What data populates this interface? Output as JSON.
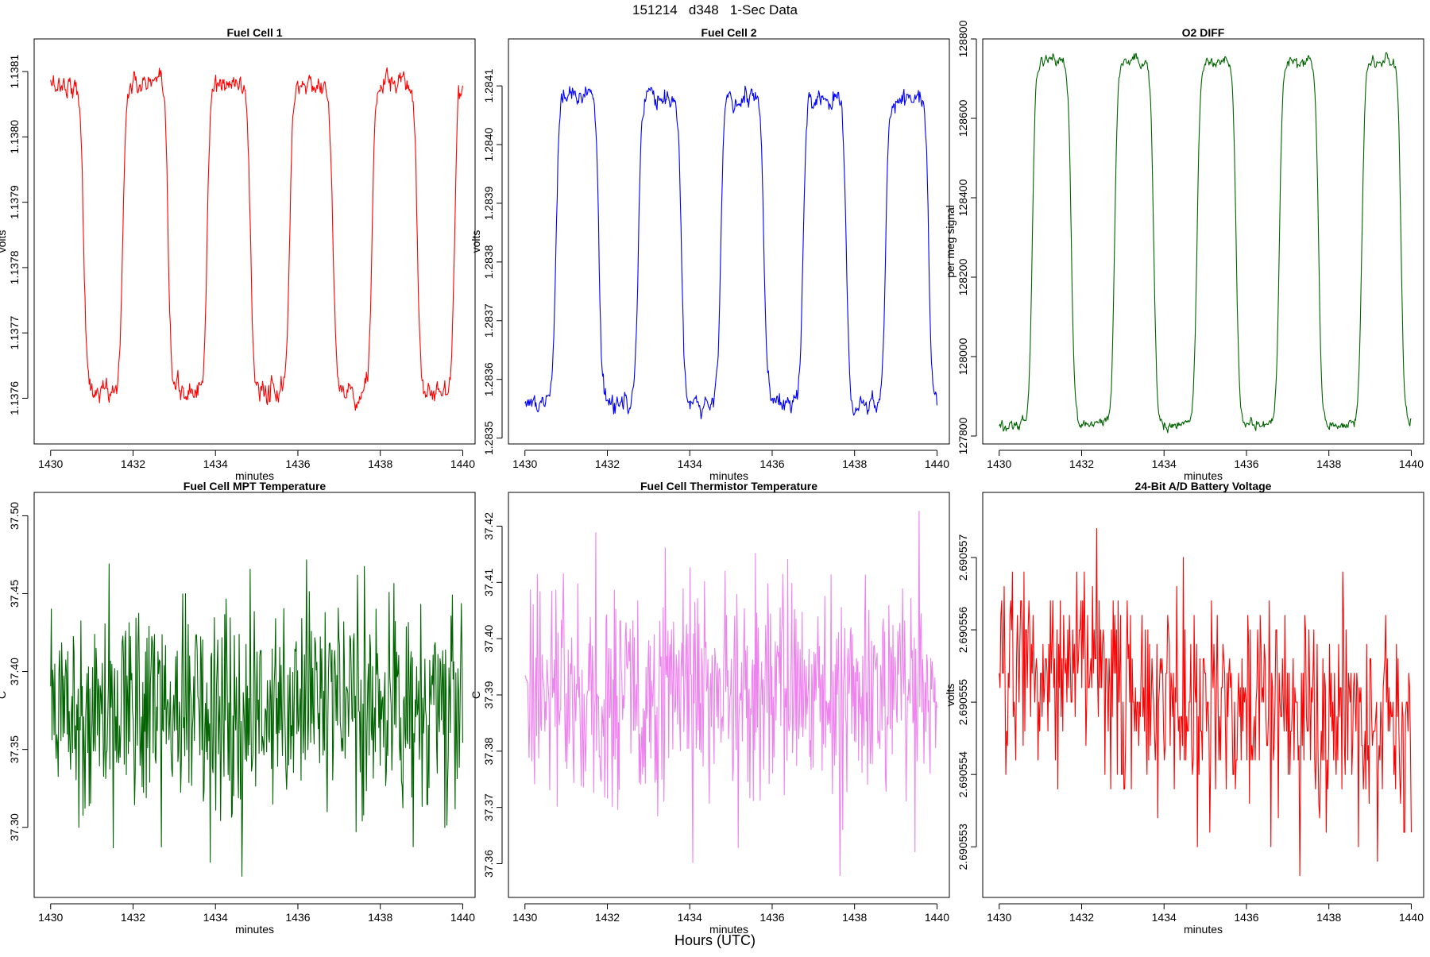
{
  "figure": {
    "suptitle": "151214   d348   1-Sec Data",
    "common_xlabel": "Hours (UTC)"
  },
  "chart_data": [
    {
      "type": "line",
      "title": "Fuel Cell 1",
      "xlabel": "minutes",
      "ylabel": "volts",
      "color": "#ff0000",
      "xlim": [
        1429.6,
        1440.3
      ],
      "ylim": [
        1.13753,
        1.13815
      ],
      "xticks": [
        1430,
        1432,
        1434,
        1436,
        1438,
        1440
      ],
      "xtick_labels": [
        "1430",
        "1432",
        "1434",
        "1436",
        "1438",
        "1440"
      ],
      "yticks": [
        1.1376,
        1.1377,
        1.1378,
        1.1379,
        1.138,
        1.1381
      ],
      "ytick_labels": [
        "1.1376",
        "1.1377",
        "1.1378",
        "1.1379",
        "1.1380",
        "1.1381"
      ],
      "profile": "square",
      "start_state": "high",
      "high": 1.13808,
      "low": 1.13761,
      "noise": 1.2e-05,
      "transitions": [
        1430.8,
        1431.75,
        1432.85,
        1433.8,
        1434.85,
        1435.8,
        1436.85,
        1437.8,
        1438.9,
        1439.8
      ],
      "x_range": [
        1430,
        1440
      ],
      "points": 600,
      "series_name": "Fuel Cell 1"
    },
    {
      "type": "line",
      "title": "Fuel Cell 2",
      "xlabel": "minutes",
      "ylabel": "volts",
      "color": "#0000ff",
      "xlim": [
        1429.6,
        1440.3
      ],
      "ylim": [
        1.28349,
        1.28418
      ],
      "xticks": [
        1430,
        1432,
        1434,
        1436,
        1438,
        1440
      ],
      "xtick_labels": [
        "1430",
        "1432",
        "1434",
        "1436",
        "1438",
        "1440"
      ],
      "yticks": [
        1.2835,
        1.2836,
        1.2837,
        1.2838,
        1.2839,
        1.284,
        1.2841
      ],
      "ytick_labels": [
        "1.2835",
        "1.2836",
        "1.2837",
        "1.2838",
        "1.2839",
        "1.2840",
        "1.2841"
      ],
      "profile": "square",
      "start_state": "low",
      "high": 1.28408,
      "low": 1.28356,
      "noise": 1.2e-05,
      "transitions": [
        1430.75,
        1431.8,
        1432.75,
        1433.8,
        1434.75,
        1435.8,
        1436.75,
        1437.8,
        1438.75,
        1439.8
      ],
      "x_range": [
        1430,
        1440
      ],
      "points": 600,
      "series_name": "Fuel Cell 2"
    },
    {
      "type": "line",
      "title": "O2 DIFF",
      "xlabel": "minutes",
      "ylabel": "per meg signal",
      "color": "#006400",
      "xlim": [
        1429.6,
        1440.3
      ],
      "ylim": [
        127780,
        128800
      ],
      "xticks": [
        1430,
        1432,
        1434,
        1436,
        1438,
        1440
      ],
      "xtick_labels": [
        "1430",
        "1432",
        "1434",
        "1436",
        "1438",
        "1440"
      ],
      "yticks": [
        127800,
        128000,
        128200,
        128400,
        128600,
        128800
      ],
      "ytick_labels": [
        "127800",
        "128000",
        "128200",
        "128400",
        "128600",
        "128800"
      ],
      "profile": "square",
      "start_state": "low",
      "high": 128745,
      "low": 127830,
      "noise": 10,
      "transitions": [
        1430.8,
        1431.75,
        1432.8,
        1433.75,
        1434.8,
        1435.75,
        1436.8,
        1437.75,
        1438.8,
        1439.75
      ],
      "x_range": [
        1430,
        1440
      ],
      "points": 600,
      "series_name": "O2 DIFF"
    },
    {
      "type": "line",
      "title": "Fuel Cell MPT Temperature",
      "xlabel": "minutes",
      "ylabel": "C",
      "color": "#006400",
      "xlim": [
        1429.6,
        1440.3
      ],
      "ylim": [
        37.255,
        37.515
      ],
      "xticks": [
        1430,
        1432,
        1434,
        1436,
        1438,
        1440
      ],
      "xtick_labels": [
        "1430",
        "1432",
        "1434",
        "1436",
        "1438",
        "1440"
      ],
      "yticks": [
        37.3,
        37.35,
        37.4,
        37.45,
        37.5
      ],
      "ytick_labels": [
        "37.30",
        "37.35",
        "37.40",
        "37.45",
        "37.50"
      ],
      "profile": "noise",
      "mean": 37.38,
      "noise": 0.035,
      "clip": [
        37.265,
        37.505
      ],
      "x_range": [
        1430,
        1440
      ],
      "points": 600,
      "series_name": "MPT Temperature"
    },
    {
      "type": "line",
      "title": "Fuel Cell Thermistor Temperature",
      "xlabel": "minutes",
      "ylabel": "C",
      "color": "#ee82ee",
      "xlim": [
        1429.6,
        1440.3
      ],
      "ylim": [
        37.354,
        37.426
      ],
      "xticks": [
        1430,
        1432,
        1434,
        1436,
        1438,
        1440
      ],
      "xtick_labels": [
        "1430",
        "1432",
        "1434",
        "1436",
        "1438",
        "1440"
      ],
      "yticks": [
        37.36,
        37.37,
        37.38,
        37.39,
        37.4,
        37.41,
        37.42
      ],
      "ytick_labels": [
        "37.36",
        "37.37",
        "37.38",
        "37.39",
        "37.40",
        "37.41",
        "37.42"
      ],
      "profile": "noise",
      "mean": 37.39,
      "noise": 0.01,
      "clip": [
        37.357,
        37.423
      ],
      "x_range": [
        1430,
        1440
      ],
      "points": 600,
      "series_name": "Thermistor Temperature"
    },
    {
      "type": "line",
      "title": "24-Bit A/D Battery Voltage",
      "xlabel": "minutes",
      "ylabel": "volts",
      "color": "#ff0000",
      "xlim": [
        1429.6,
        1440.3
      ],
      "ylim": [
        2.6905523,
        2.6905579
      ],
      "xticks": [
        1430,
        1432,
        1434,
        1436,
        1438,
        1440
      ],
      "xtick_labels": [
        "1430",
        "1432",
        "1434",
        "1436",
        "1438",
        "1440"
      ],
      "yticks": [
        2.690553,
        2.690554,
        2.690555,
        2.690556,
        2.690557
      ],
      "ytick_labels": [
        "2.690553",
        "2.690554",
        "2.690555",
        "2.690556",
        "2.690557"
      ],
      "profile": "stepnoise",
      "mean_start": 2.6905556,
      "mean_end": 2.6905545,
      "step": 2e-07,
      "noise": 7e-07,
      "clip": [
        2.6905525,
        2.6905575
      ],
      "x_range": [
        1430,
        1440
      ],
      "points": 500,
      "series_name": "Battery Voltage"
    }
  ]
}
